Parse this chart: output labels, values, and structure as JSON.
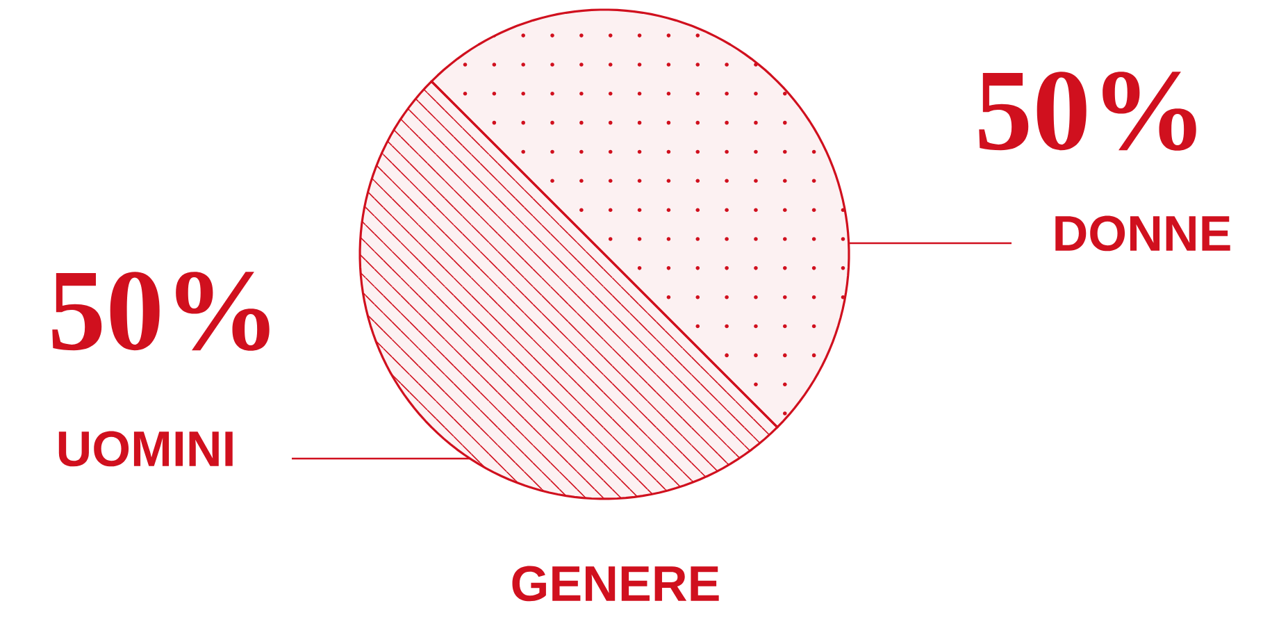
{
  "chart_data": {
    "type": "pie",
    "title": "GENERE",
    "categories": [
      "DONNE",
      "UOMINI"
    ],
    "values": [
      50,
      50
    ],
    "value_labels": [
      "50%",
      "50%"
    ],
    "colors": [
      "#d0101e",
      "#d0101e"
    ]
  }
}
